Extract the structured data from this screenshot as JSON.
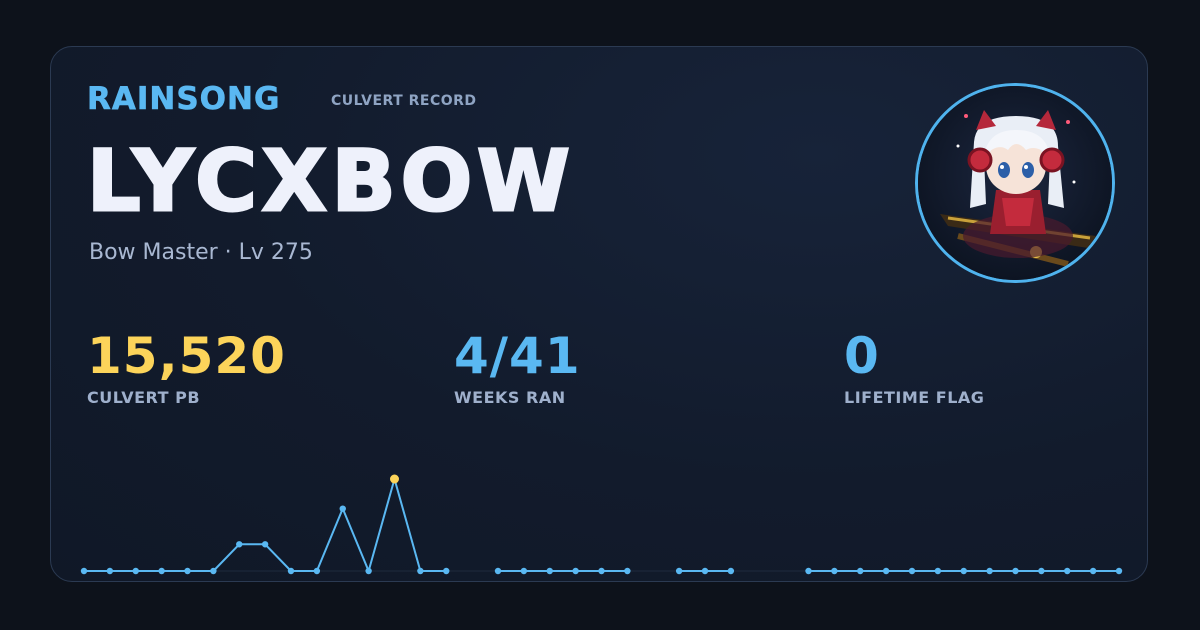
{
  "header": {
    "brand": "RAINSONG",
    "subtitle": "CULVERT RECORD"
  },
  "character": {
    "name": "LYCXBOW",
    "class_level": "Bow Master · Lv 275"
  },
  "stats": [
    {
      "value": "15,520",
      "label": "CULVERT PB",
      "color": "#fcd45a"
    },
    {
      "value": "4/41",
      "label": "WEEKS RAN",
      "color": "#5ab8f2"
    },
    {
      "value": "0",
      "label": "LIFETIME FLAG",
      "color": "#5ab8f2"
    }
  ],
  "colors": {
    "accent": "#5ab8f2",
    "highlight": "#fcd45a",
    "background": "#0d121b",
    "card": "#121b2c"
  },
  "chart_data": {
    "type": "line",
    "x": [
      1,
      2,
      3,
      4,
      5,
      6,
      7,
      8,
      9,
      10,
      11,
      12,
      13,
      14,
      15,
      16,
      17,
      18,
      19,
      20,
      21,
      22,
      23,
      24,
      25,
      26,
      27,
      28,
      29,
      30,
      31,
      32,
      33,
      34,
      35,
      36,
      37,
      38,
      39,
      40,
      41
    ],
    "values": [
      0,
      0,
      0,
      0,
      0,
      0,
      4.5,
      4.5,
      0,
      0,
      10.5,
      0,
      15.5,
      0,
      0,
      null,
      0,
      0,
      0,
      0,
      0,
      0,
      null,
      0,
      0,
      0,
      null,
      null,
      0,
      0,
      0,
      0,
      0,
      0,
      0,
      0,
      0,
      0,
      0,
      0,
      0
    ],
    "highlight_index": 12,
    "ylim": [
      0,
      15.5
    ],
    "grid": false,
    "legend": "none"
  }
}
